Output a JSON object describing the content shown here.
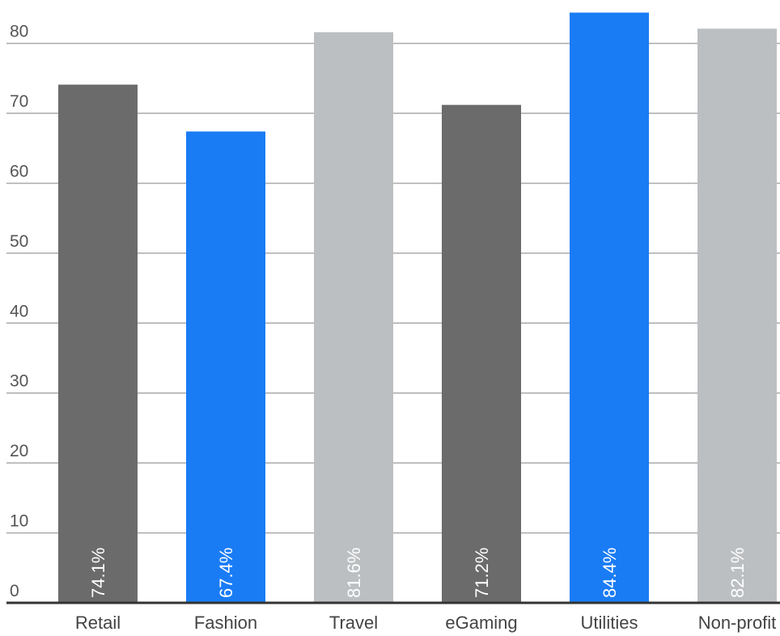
{
  "chart_data": {
    "type": "bar",
    "categories": [
      "Retail",
      "Fashion",
      "Travel",
      "eGaming",
      "Utilities",
      "Non-profit"
    ],
    "values": [
      74.1,
      67.4,
      81.6,
      71.2,
      84.4,
      82.1
    ],
    "value_labels": [
      "74.1%",
      "67.4%",
      "81.6%",
      "71.2%",
      "84.4%",
      "82.1%"
    ],
    "colors": [
      "#6b6b6b",
      "#1a7cf5",
      "#bcbfc2",
      "#6b6b6b",
      "#1a7cf5",
      "#bcbfc2"
    ],
    "ylim": [
      0,
      86.2
    ],
    "yticks": [
      0,
      10,
      20,
      30,
      40,
      50,
      60,
      70,
      80
    ],
    "grid": true
  }
}
